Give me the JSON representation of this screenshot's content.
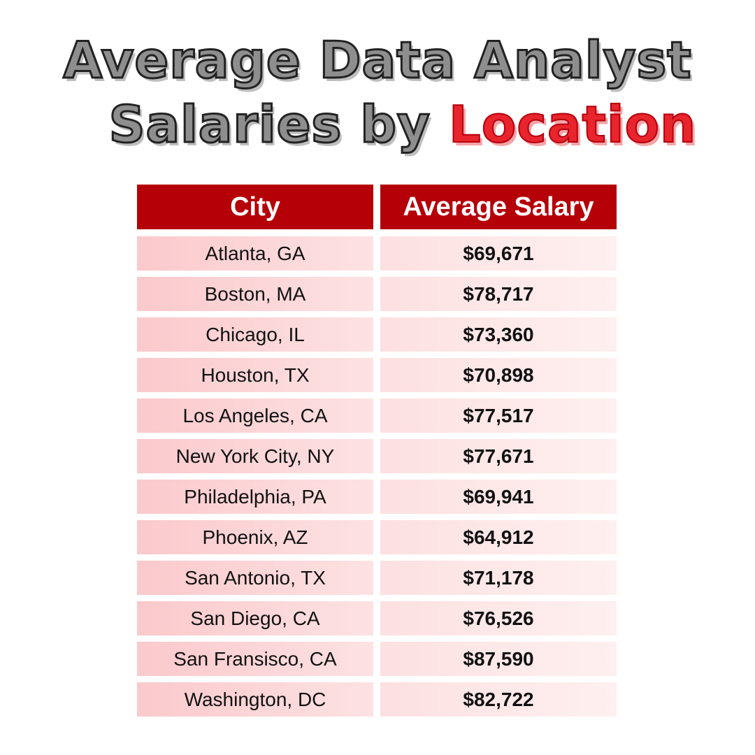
{
  "title": {
    "line1": "Average Data Analyst",
    "line2_prefix": "Salaries by",
    "line2_highlight": "Location"
  },
  "colors": {
    "header_bg": "#b50008",
    "highlight_red": "#e8242c",
    "title_gray": "#8e8e8e",
    "city_cell_bg": "#fbc9cc",
    "salary_cell_bg": "#fde0e1"
  },
  "chart_data": {
    "type": "table",
    "columns": [
      "City",
      "Average Salary"
    ],
    "rows": [
      {
        "city": "Atlanta, GA",
        "salary": "$69,671"
      },
      {
        "city": "Boston, MA",
        "salary": "$78,717"
      },
      {
        "city": "Chicago, IL",
        "salary": "$73,360"
      },
      {
        "city": "Houston, TX",
        "salary": "$70,898"
      },
      {
        "city": "Los Angeles, CA",
        "salary": "$77,517"
      },
      {
        "city": "New York City, NY",
        "salary": "$77,671"
      },
      {
        "city": "Philadelphia, PA",
        "salary": "$69,941"
      },
      {
        "city": "Phoenix, AZ",
        "salary": "$64,912"
      },
      {
        "city": "San Antonio, TX",
        "salary": "$71,178"
      },
      {
        "city": "San Diego, CA",
        "salary": "$76,526"
      },
      {
        "city": "San Fransisco, CA",
        "salary": "$87,590"
      },
      {
        "city": "Washington, DC",
        "salary": "$82,722"
      }
    ]
  }
}
